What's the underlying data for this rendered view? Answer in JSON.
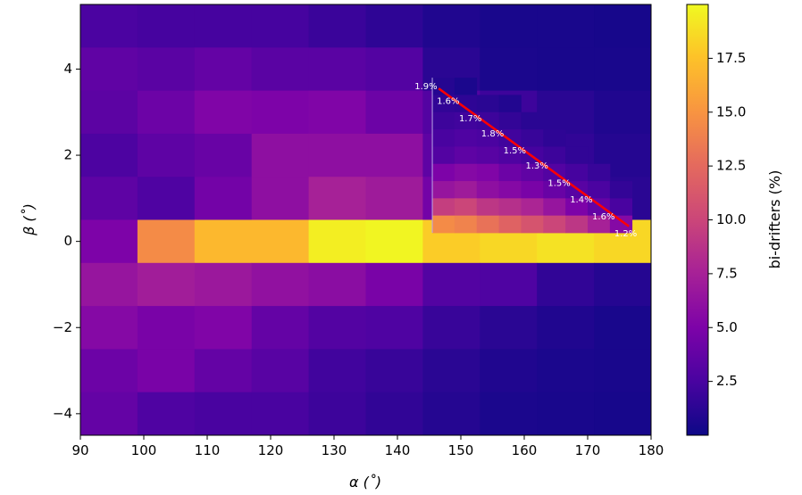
{
  "chart_data": {
    "type": "heatmap",
    "title": "",
    "xlabel": "α (˚)",
    "ylabel": "β (˚)",
    "xlim": [
      90,
      180
    ],
    "ylim": [
      -4.5,
      5.5
    ],
    "x_ticks": [
      90,
      100,
      110,
      120,
      130,
      140,
      150,
      160,
      170,
      180
    ],
    "y_ticks": [
      -4,
      -2,
      0,
      2,
      4
    ],
    "colormap": "plasma",
    "colorbar": {
      "label": "bi-drifters (%)",
      "min": 0,
      "max": 20,
      "ticks": [
        2.5,
        5.0,
        7.5,
        10.0,
        12.5,
        15.0,
        17.5
      ],
      "tick_labels": [
        "2.5",
        "5.0",
        "7.5",
        "10.0",
        "12.5",
        "15.0",
        "17.5"
      ]
    },
    "main_grid": {
      "x_edges": [
        90,
        99,
        108,
        117,
        126,
        135,
        144,
        153,
        162,
        171,
        180
      ],
      "y_edges": [
        -4.5,
        -3.5,
        -2.5,
        -1.5,
        -0.5,
        0.5,
        1.5,
        2.5,
        3.5,
        4.5,
        5.5
      ],
      "rows_top_to_bottom": [
        [
          2.6,
          2.4,
          2.4,
          2.4,
          1.9,
          1.4,
          0.8,
          0.5,
          0.5,
          0.4
        ],
        [
          3.6,
          3.3,
          3.8,
          3.3,
          3.3,
          3.0,
          1.2,
          0.6,
          0.5,
          0.5
        ],
        [
          3.4,
          4.2,
          5.2,
          5.0,
          5.2,
          4.2,
          3.0,
          2.0,
          1.2,
          0.8
        ],
        [
          2.7,
          3.5,
          4.0,
          6.0,
          6.0,
          6.0,
          3.5,
          2.5,
          1.5,
          1.0
        ],
        [
          3.5,
          2.8,
          4.5,
          6.0,
          7.5,
          7.0,
          4.5,
          3.5,
          2.0,
          1.2
        ],
        [
          5.0,
          14.5,
          17.0,
          17.0,
          19.5,
          19.8,
          18.0,
          18.5,
          19.0,
          18.5
        ],
        [
          6.5,
          7.2,
          6.8,
          6.2,
          5.8,
          4.8,
          3.0,
          2.8,
          1.5,
          1.0
        ],
        [
          5.5,
          4.8,
          5.2,
          3.8,
          3.0,
          2.8,
          1.8,
          1.2,
          0.8,
          0.5
        ],
        [
          4.2,
          4.8,
          3.8,
          3.2,
          2.2,
          1.8,
          1.2,
          0.8,
          0.6,
          0.5
        ],
        [
          3.8,
          2.8,
          2.5,
          2.5,
          2.0,
          1.5,
          1.0,
          0.6,
          0.5,
          0.4
        ]
      ]
    },
    "inset_grid": {
      "x_edges": [
        145.5,
        149,
        152.5,
        156,
        159.5,
        163,
        166.5,
        170,
        173.5,
        177
      ],
      "y_edges": [
        0.2,
        0.6,
        1.0,
        1.4,
        1.8,
        2.2,
        2.6,
        3.0,
        3.4,
        3.8
      ],
      "rows_top_to_bottom": [
        [
          1.0,
          0.6,
          null,
          null,
          null,
          null,
          null,
          null,
          null
        ],
        [
          1.5,
          1.4,
          1.2,
          0.9,
          null,
          null,
          null,
          null,
          null
        ],
        [
          2.0,
          2.2,
          2.0,
          1.6,
          1.2,
          null,
          null,
          null,
          null
        ],
        [
          2.5,
          2.8,
          2.6,
          2.2,
          1.8,
          1.4,
          null,
          null,
          null
        ],
        [
          3.0,
          3.5,
          3.2,
          2.8,
          2.4,
          2.0,
          1.5,
          null,
          null
        ],
        [
          5.0,
          5.5,
          5.2,
          4.2,
          3.6,
          3.0,
          2.4,
          1.8,
          null
        ],
        [
          6.5,
          7.0,
          6.0,
          5.5,
          4.8,
          4.0,
          3.2,
          2.6,
          1.6
        ],
        [
          9.5,
          10.0,
          9.0,
          8.5,
          7.8,
          6.5,
          5.0,
          3.8,
          2.5
        ],
        [
          14.5,
          14.0,
          13.0,
          12.0,
          11.0,
          10.0,
          9.0,
          7.5,
          5.5
        ]
      ]
    },
    "path": {
      "points": [
        [
          146.5,
          3.55
        ],
        [
          176.5,
          0.35
        ]
      ],
      "color": "#ff0000"
    },
    "annotations": [
      {
        "text": "1.9%",
        "x": 144.5,
        "y": 3.6
      },
      {
        "text": "1.6%",
        "x": 148.0,
        "y": 3.25
      },
      {
        "text": "1.7%",
        "x": 151.5,
        "y": 2.85
      },
      {
        "text": "1.8%",
        "x": 155.0,
        "y": 2.5
      },
      {
        "text": "1.5%",
        "x": 158.5,
        "y": 2.1
      },
      {
        "text": "1.3%",
        "x": 162.0,
        "y": 1.75
      },
      {
        "text": "1.5%",
        "x": 165.5,
        "y": 1.35
      },
      {
        "text": "1.4%",
        "x": 169.0,
        "y": 0.97
      },
      {
        "text": "1.6%",
        "x": 172.5,
        "y": 0.57
      },
      {
        "text": "1.2%",
        "x": 176.0,
        "y": 0.18
      }
    ]
  }
}
